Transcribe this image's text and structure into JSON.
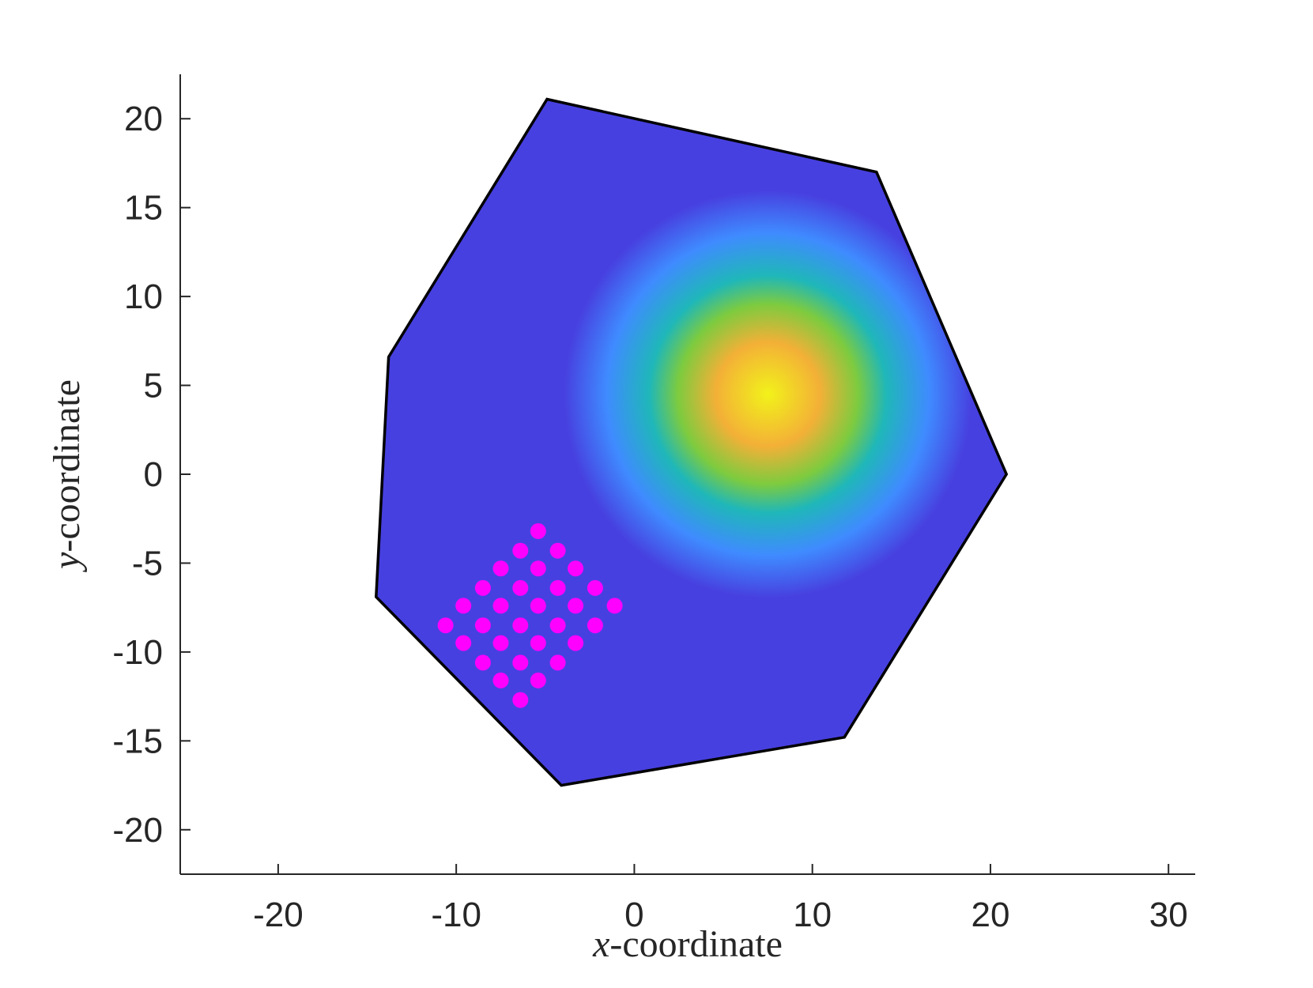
{
  "chart_data": {
    "type": "scatter",
    "title": "",
    "xlabel": {
      "var": "x",
      "rest": "-coordinate"
    },
    "ylabel": {
      "var": "y",
      "rest": "-coordinate"
    },
    "xlim": [
      -25.5,
      31.5
    ],
    "ylim": [
      -22.5,
      22.5
    ],
    "xticks": [
      -20,
      -10,
      0,
      10,
      20,
      30
    ],
    "xtick_labels": [
      "-20",
      "-10",
      "0",
      "10",
      "20",
      "30"
    ],
    "yticks": [
      20,
      15,
      10,
      5,
      0,
      -5,
      -10,
      -15,
      -20
    ],
    "ytick_labels": [
      "20",
      "15",
      "10",
      "5",
      "0",
      "-5",
      "-10",
      "-15",
      "-20"
    ],
    "grid": false,
    "region": {
      "name": "domain",
      "vertices": [
        [
          -4.9,
          21.1
        ],
        [
          13.6,
          17.0
        ],
        [
          20.9,
          0.0
        ],
        [
          11.8,
          -14.8
        ],
        [
          -4.1,
          -17.5
        ],
        [
          -14.5,
          -6.9
        ],
        [
          -13.8,
          6.6
        ]
      ],
      "edge_color": "#000000"
    },
    "field": {
      "name": "gaussian",
      "center": [
        7.5,
        4.5
      ],
      "colormap": [
        "#4740e0",
        "#3f8bff",
        "#1fb7b9",
        "#7dcb3f",
        "#f3b037",
        "#f2f21a"
      ]
    },
    "series": [
      {
        "color": "#ff00ff",
        "points": [
          [
            -5.4,
            -3.2
          ],
          [
            -6.4,
            -4.3
          ],
          [
            -4.3,
            -4.3
          ],
          [
            -7.5,
            -5.3
          ],
          [
            -5.4,
            -5.3
          ],
          [
            -3.3,
            -5.3
          ],
          [
            -8.5,
            -6.4
          ],
          [
            -6.4,
            -6.4
          ],
          [
            -4.3,
            -6.4
          ],
          [
            -2.2,
            -6.4
          ],
          [
            -9.6,
            -7.4
          ],
          [
            -7.5,
            -7.4
          ],
          [
            -5.4,
            -7.4
          ],
          [
            -3.3,
            -7.4
          ],
          [
            -1.1,
            -7.4
          ],
          [
            -10.6,
            -8.5
          ],
          [
            -8.5,
            -8.5
          ],
          [
            -6.4,
            -8.5
          ],
          [
            -4.3,
            -8.5
          ],
          [
            -2.2,
            -8.5
          ],
          [
            -9.6,
            -9.5
          ],
          [
            -7.5,
            -9.5
          ],
          [
            -5.4,
            -9.5
          ],
          [
            -3.3,
            -9.5
          ],
          [
            -8.5,
            -10.6
          ],
          [
            -6.4,
            -10.6
          ],
          [
            -4.3,
            -10.6
          ],
          [
            -7.5,
            -11.6
          ],
          [
            -5.4,
            -11.6
          ],
          [
            -6.4,
            -12.7
          ]
        ]
      }
    ]
  }
}
